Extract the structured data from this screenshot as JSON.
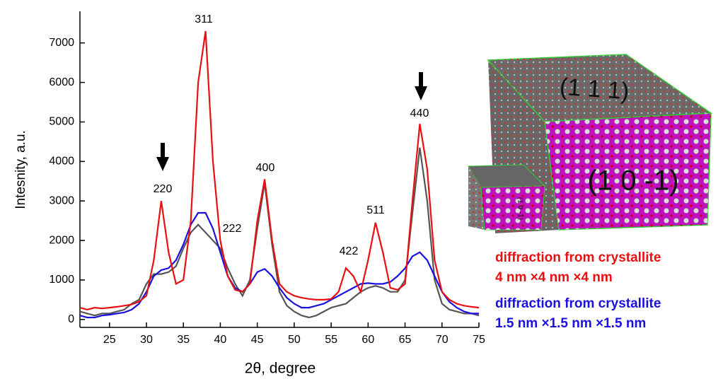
{
  "chart_data": {
    "type": "line",
    "x_label": "2θ, degree",
    "y_label": "Intesnity, a.u.",
    "x": [
      21,
      22,
      23,
      24,
      25,
      26,
      27,
      28,
      29,
      30,
      31,
      32,
      33,
      34,
      35,
      36,
      37,
      38,
      39,
      40,
      41,
      42,
      43,
      44,
      45,
      46,
      47,
      48,
      49,
      50,
      51,
      52,
      53,
      54,
      55,
      56,
      57,
      58,
      59,
      60,
      61,
      62,
      63,
      64,
      65,
      66,
      67,
      68,
      69,
      70,
      71,
      72,
      73,
      74,
      75
    ],
    "series": [
      {
        "color": "#555555",
        "values": [
          200,
          150,
          100,
          150,
          150,
          200,
          250,
          400,
          500,
          900,
          1150,
          1150,
          1200,
          1350,
          1800,
          2200,
          2400,
          2200,
          2000,
          1800,
          1300,
          900,
          600,
          1000,
          2300,
          3450,
          1900,
          700,
          350,
          200,
          100,
          50,
          100,
          200,
          300,
          350,
          400,
          550,
          700,
          800,
          850,
          800,
          700,
          700,
          1000,
          2700,
          4350,
          3000,
          1000,
          400,
          250,
          200,
          150,
          150,
          100
        ]
      },
      {
        "name": "diffraction from crystallite",
        "size": "1.5 nm ×1.5 nm ×1.5 nm",
        "color": "#1a10e0",
        "values": [
          100,
          50,
          50,
          100,
          120,
          150,
          180,
          250,
          400,
          700,
          1100,
          1250,
          1300,
          1500,
          1900,
          2400,
          2700,
          2700,
          2300,
          1700,
          1100,
          800,
          700,
          900,
          1200,
          1280,
          1100,
          800,
          550,
          400,
          300,
          300,
          350,
          400,
          500,
          600,
          700,
          800,
          900,
          920,
          900,
          900,
          950,
          1100,
          1300,
          1600,
          1700,
          1500,
          1100,
          700,
          450,
          300,
          200,
          150,
          150
        ]
      },
      {
        "name": "diffraction from crystallite",
        "size": "4 nm ×4 nm ×4 nm",
        "color": "#e81010",
        "values": [
          300,
          250,
          300,
          280,
          300,
          320,
          350,
          380,
          450,
          600,
          1500,
          3000,
          1700,
          900,
          1000,
          2500,
          6000,
          7300,
          4000,
          2000,
          1100,
          750,
          700,
          900,
          2500,
          3550,
          2000,
          900,
          700,
          600,
          550,
          520,
          500,
          500,
          520,
          700,
          1300,
          1100,
          700,
          1500,
          2450,
          1700,
          800,
          750,
          900,
          3000,
          4950,
          3800,
          1500,
          700,
          500,
          400,
          350,
          320,
          300
        ]
      }
    ],
    "annotations": [
      "220",
      "311",
      "222",
      "400",
      "422",
      "511",
      "440"
    ],
    "xlim": [
      21,
      75
    ],
    "xticks": [
      25,
      30,
      35,
      40,
      45,
      50,
      55,
      60,
      65,
      70,
      75
    ],
    "ylim": [
      -200,
      7800
    ],
    "yticks": [
      0,
      1000,
      2000,
      3000,
      4000,
      5000,
      6000,
      7000
    ],
    "illustration": {
      "large_top": "(1 1 1)",
      "large_front": "(1 0 -1)",
      "small_front": "(1 0 -1)"
    }
  }
}
